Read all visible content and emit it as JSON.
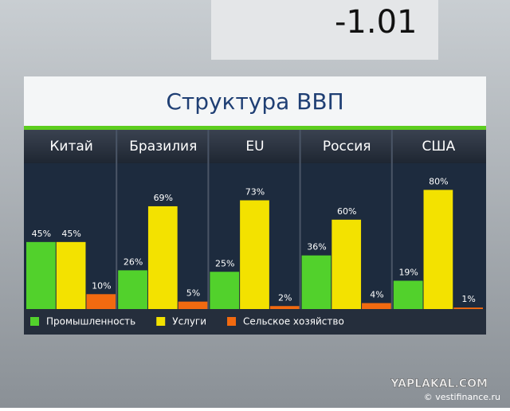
{
  "chart_data": {
    "type": "bar",
    "title": "Структура ВВП",
    "categories": [
      "Китай",
      "Бразилия",
      "EU",
      "Россия",
      "США"
    ],
    "series": [
      {
        "name": "Промышленность",
        "color": "#52d12c",
        "values": [
          45,
          26,
          25,
          36,
          19
        ],
        "value_labels": [
          "45%",
          "26%",
          "25%",
          "36%",
          "19%"
        ]
      },
      {
        "name": "Услуги",
        "color": "#f3e200",
        "values": [
          45,
          69,
          73,
          60,
          80
        ],
        "value_labels": [
          "45%",
          "69%",
          "73%",
          "60%",
          "80%"
        ]
      },
      {
        "name": "Сельское хозяйство",
        "color": "#f26a10",
        "values": [
          10,
          5,
          2,
          4,
          1
        ],
        "value_labels": [
          "10%",
          "5%",
          "2%",
          "4%",
          "1%"
        ]
      }
    ],
    "annotations": [
      "-1.01",
      "YAPLAKAL.COM",
      "© vestifinance.ru"
    ]
  }
}
